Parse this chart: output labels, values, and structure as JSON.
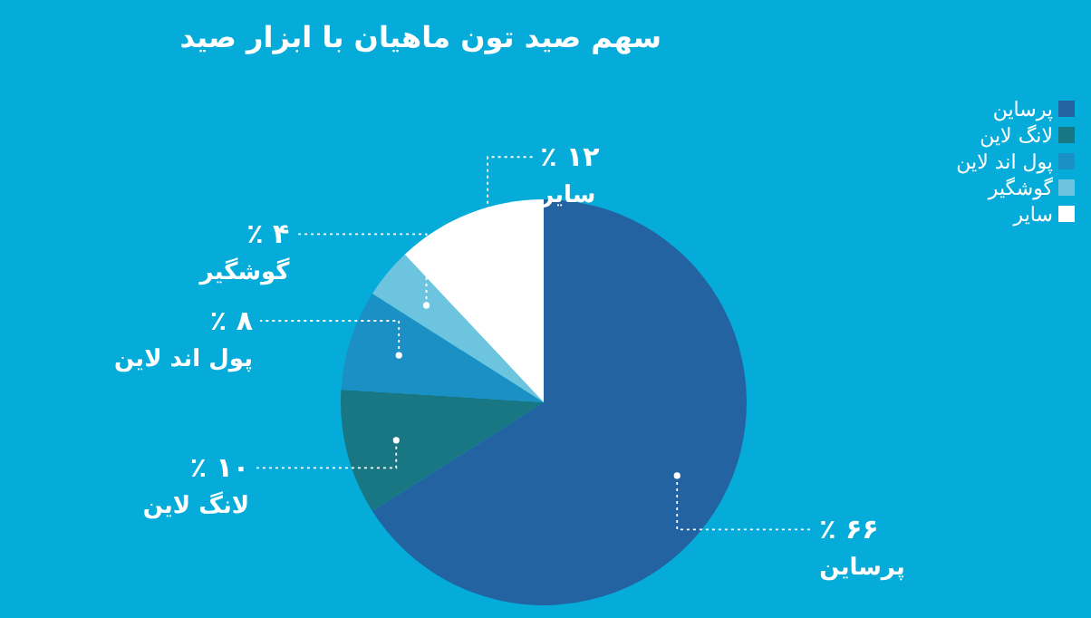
{
  "chart_data": {
    "type": "pie",
    "title": "سهم صید تون ماهیان با ابزار صید",
    "categories": [
      "پرساین",
      "لانگ لاین",
      "پول اند لاین",
      "گوشگیر",
      "سایر"
    ],
    "values": [
      66,
      10,
      8,
      4,
      12
    ],
    "value_labels": [
      "۶۶ ٪",
      "۱۰ ٪",
      "۸ ٪",
      "۴ ٪",
      "۱۲ ٪"
    ],
    "colors": [
      "#2463a2",
      "#197784",
      "#1b90c4",
      "#6cc4de",
      "#ffffff"
    ],
    "legend": "top right"
  }
}
